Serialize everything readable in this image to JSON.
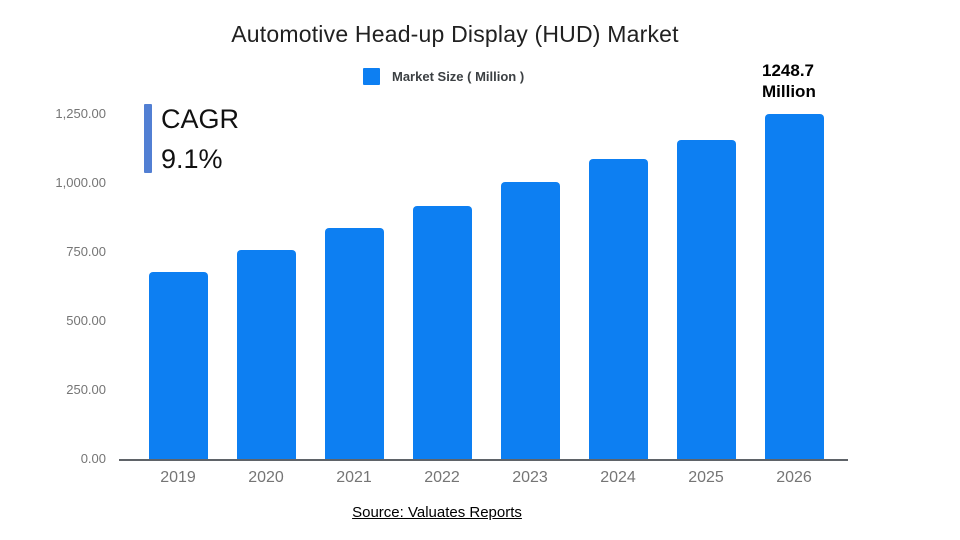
{
  "title": "Automotive Head-up Display (HUD) Market",
  "legend": {
    "label": "Market Size ( Million )",
    "swatch_icon": "blue-square-icon"
  },
  "annotations": {
    "cagr_label": "CAGR",
    "cagr_value": "9.1%",
    "final_value_line1": "1248.7",
    "final_value_line2": "Million"
  },
  "source_link": "Source: Valuates Reports",
  "colors": {
    "bar": "#0d7ff2",
    "cagr_accent": "#527fd3",
    "title_text": "#212121",
    "legend_text": "#3c4043",
    "axis_text": "#757575",
    "axis_line": "#5f6368"
  },
  "chart_data": {
    "type": "bar",
    "title": "Automotive Head-up Display (HUD) Market",
    "series_name": "Market Size ( Million )",
    "categories": [
      "2019",
      "2020",
      "2021",
      "2022",
      "2023",
      "2024",
      "2025",
      "2026"
    ],
    "values": [
      678,
      757,
      837,
      917,
      1004,
      1087,
      1156,
      1248.7
    ],
    "xlabel": "",
    "ylabel": "",
    "ylim": [
      0,
      1250
    ],
    "yticks": [
      "0.00",
      "250.00",
      "500.00",
      "750.00",
      "1,000.00",
      "1,250.00"
    ],
    "ytick_values": [
      0,
      250,
      500,
      750,
      1000,
      1250
    ],
    "grid": false,
    "legend_position": "top",
    "annotation_cagr": "CAGR 9.1%",
    "annotation_final": "1248.7 Million"
  }
}
